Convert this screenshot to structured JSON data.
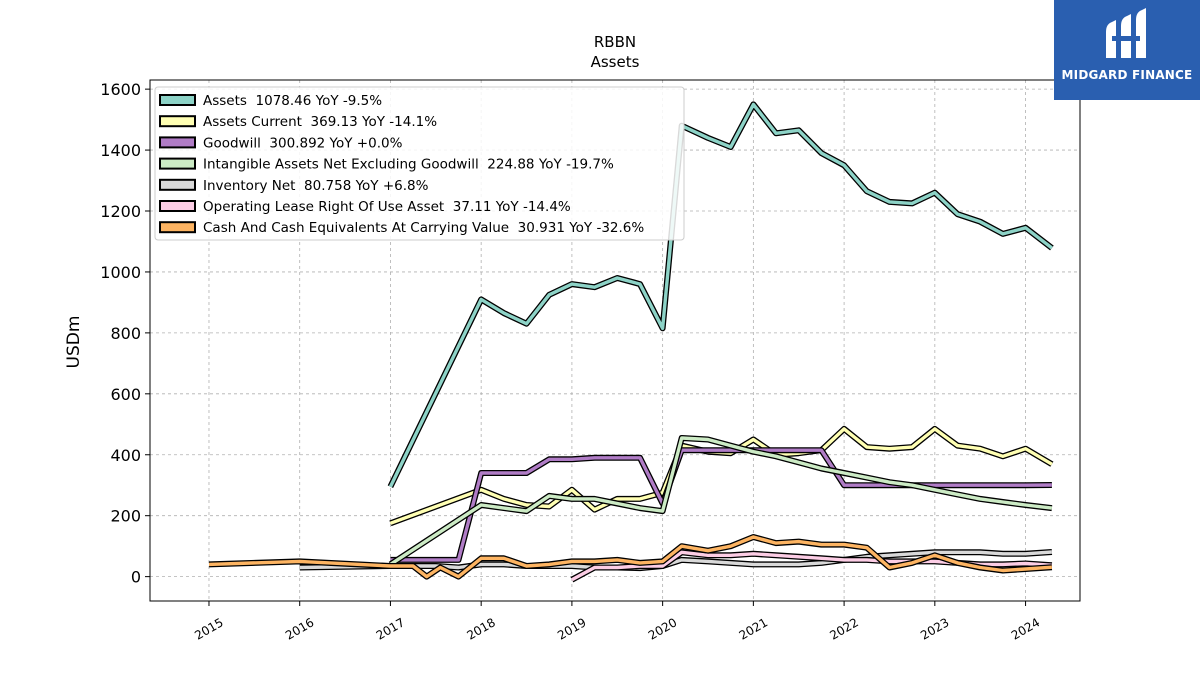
{
  "brand": {
    "name": "MIDGARD FINANCE",
    "bg_color": "#2a5fb0"
  },
  "chart_data": {
    "type": "line",
    "title": "RBBN",
    "subtitle": "Assets",
    "xlabel": "",
    "ylabel": "USDm",
    "xlim": [
      2014.35,
      2024.6
    ],
    "ylim": [
      -80,
      1630
    ],
    "yticks": [
      0,
      200,
      400,
      600,
      800,
      1000,
      1200,
      1400,
      1600
    ],
    "xticks": [
      2015,
      2016,
      2017,
      2018,
      2019,
      2020,
      2021,
      2022,
      2023,
      2024
    ],
    "grid": true,
    "legend_position": "upper-left",
    "series": [
      {
        "name": "Assets  1078.46 YoY -9.5%",
        "color": "#8dd3c7",
        "x": [
          2017.0,
          2018.0,
          2018.25,
          2018.5,
          2018.75,
          2019.0,
          2019.25,
          2019.5,
          2019.75,
          2020.0,
          2020.21,
          2020.5,
          2020.75,
          2021.0,
          2021.25,
          2021.5,
          2021.75,
          2022.0,
          2022.25,
          2022.5,
          2022.75,
          2023.0,
          2023.25,
          2023.5,
          2023.75,
          2024.0,
          2024.29
        ],
        "y": [
          295,
          910,
          865,
          830,
          925,
          960,
          950,
          980,
          960,
          815,
          1480,
          1440,
          1410,
          1550,
          1455,
          1465,
          1390,
          1350,
          1265,
          1230,
          1225,
          1260,
          1190,
          1165,
          1125,
          1145,
          1078.46
        ]
      },
      {
        "name": "Assets Current  369.13 YoY -14.1%",
        "color": "#ffffb3",
        "x": [
          2017.0,
          2018.0,
          2018.25,
          2018.5,
          2018.75,
          2019.0,
          2019.25,
          2019.5,
          2019.75,
          2020.0,
          2020.21,
          2020.5,
          2020.75,
          2021.0,
          2021.25,
          2021.5,
          2021.75,
          2022.0,
          2022.25,
          2022.5,
          2022.75,
          2023.0,
          2023.25,
          2023.5,
          2023.75,
          2024.0,
          2024.29
        ],
        "y": [
          175,
          285,
          255,
          235,
          230,
          285,
          220,
          255,
          255,
          275,
          430,
          410,
          405,
          450,
          400,
          405,
          415,
          485,
          425,
          420,
          425,
          485,
          430,
          420,
          395,
          420,
          369.13
        ]
      },
      {
        "name": "Goodwill  300.892 YoY +0.0%",
        "color": "#bebada",
        "line_color": "#b07cc6",
        "x": [
          2017.0,
          2017.75,
          2018.0,
          2018.25,
          2018.5,
          2018.75,
          2019.0,
          2019.25,
          2019.5,
          2019.75,
          2020.0,
          2020.21,
          2020.5,
          2020.75,
          2021.0,
          2021.25,
          2021.5,
          2021.75,
          2022.0,
          2022.25,
          2022.5,
          2022.75,
          2023.0,
          2023.25,
          2023.5,
          2023.75,
          2024.0,
          2024.29
        ],
        "y": [
          55,
          55,
          340,
          340,
          340,
          385,
          385,
          390,
          390,
          390,
          240,
          415,
          415,
          415,
          415,
          415,
          415,
          415,
          300,
          300,
          300,
          300,
          300,
          300,
          300,
          300,
          300,
          300.892
        ]
      },
      {
        "name": "Intangible Assets Net Excluding Goodwill  224.88 YoY -19.7%",
        "color": "#ccebc5",
        "x": [
          2017.0,
          2018.0,
          2018.5,
          2018.75,
          2019.0,
          2019.25,
          2019.5,
          2019.75,
          2020.0,
          2020.21,
          2020.5,
          2020.75,
          2021.0,
          2021.25,
          2021.5,
          2021.75,
          2022.0,
          2022.25,
          2022.5,
          2022.75,
          2023.0,
          2023.25,
          2023.5,
          2023.75,
          2024.0,
          2024.29
        ],
        "y": [
          40,
          235,
          215,
          265,
          255,
          255,
          240,
          225,
          215,
          455,
          450,
          430,
          410,
          395,
          375,
          355,
          340,
          325,
          310,
          300,
          285,
          270,
          255,
          245,
          235,
          224.88
        ]
      },
      {
        "name": "Inventory Net  80.758 YoY +6.8%",
        "color": "#d9d9d9",
        "x": [
          2016.0,
          2017.0,
          2017.25,
          2017.5,
          2017.75,
          2018.0,
          2018.25,
          2018.5,
          2018.75,
          2019.0,
          2019.25,
          2019.5,
          2019.75,
          2020.0,
          2020.21,
          2020.5,
          2020.75,
          2021.0,
          2021.25,
          2021.5,
          2021.75,
          2022.0,
          2022.25,
          2022.5,
          2022.75,
          2023.0,
          2023.25,
          2023.5,
          2023.75,
          2024.0,
          2024.29
        ],
        "y": [
          30,
          35,
          35,
          35,
          30,
          40,
          40,
          35,
          35,
          35,
          30,
          30,
          28,
          35,
          55,
          50,
          45,
          40,
          40,
          40,
          45,
          55,
          65,
          70,
          75,
          80,
          80,
          80,
          75,
          75,
          80.758
        ]
      },
      {
        "name": "Operating Lease Right Of Use Asset  37.11 YoY -14.4%",
        "color": "#fccde5",
        "x": [
          2019.0,
          2019.25,
          2019.5,
          2019.75,
          2020.0,
          2020.21,
          2020.5,
          2020.75,
          2021.0,
          2021.25,
          2021.5,
          2021.75,
          2022.0,
          2022.25,
          2022.5,
          2022.75,
          2023.0,
          2023.25,
          2023.5,
          2023.75,
          2024.0,
          2024.29
        ],
        "y": [
          -10,
          30,
          30,
          35,
          35,
          80,
          70,
          70,
          75,
          70,
          65,
          60,
          55,
          55,
          50,
          50,
          50,
          45,
          40,
          40,
          43,
          37.11
        ]
      },
      {
        "name": "Cash And Cash Equivalents At Carrying Value  30.931 YoY -32.6%",
        "color": "#fdb462",
        "x": [
          2015.0,
          2016.0,
          2017.0,
          2017.25,
          2017.4,
          2017.55,
          2017.75,
          2018.0,
          2018.25,
          2018.5,
          2018.75,
          2019.0,
          2019.25,
          2019.5,
          2019.75,
          2020.0,
          2020.21,
          2020.5,
          2020.75,
          2021.0,
          2021.25,
          2021.5,
          2021.75,
          2022.0,
          2022.25,
          2022.5,
          2022.75,
          2023.0,
          2023.25,
          2023.5,
          2023.75,
          2024.0,
          2024.29
        ],
        "y": [
          40,
          50,
          35,
          35,
          0,
          30,
          0,
          60,
          60,
          35,
          40,
          50,
          50,
          55,
          45,
          50,
          100,
          85,
          100,
          130,
          110,
          115,
          105,
          105,
          95,
          30,
          45,
          70,
          45,
          30,
          20,
          25,
          30.931
        ]
      }
    ]
  }
}
